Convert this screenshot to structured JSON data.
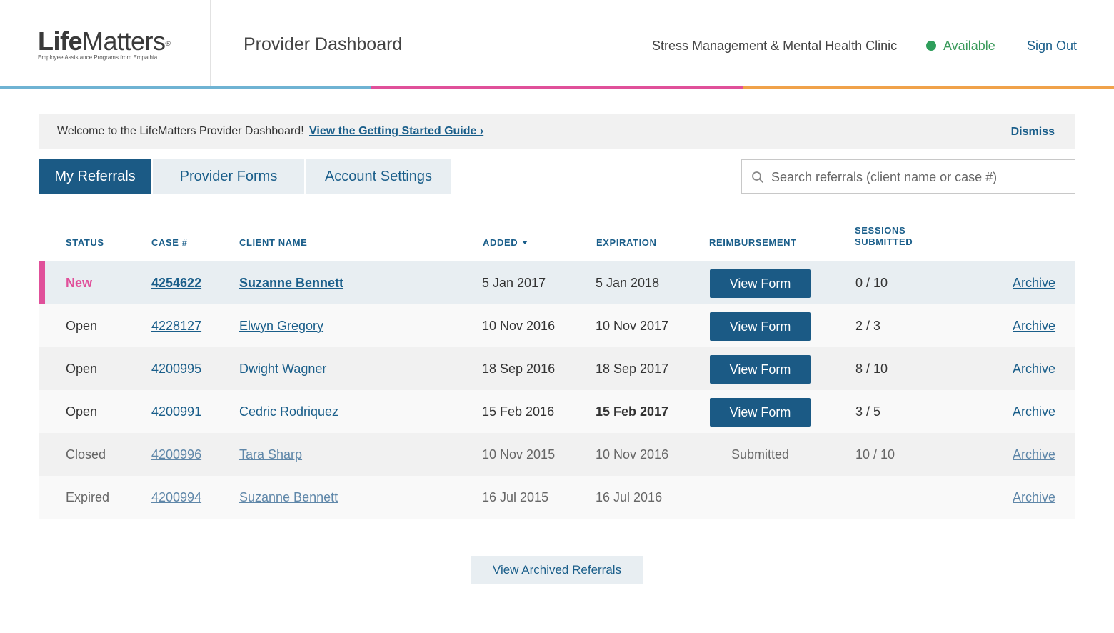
{
  "header": {
    "logo_life": "Life",
    "logo_matters": "Matters",
    "logo_reg": "®",
    "logo_tagline": "Employee Assistance Programs from Empathia",
    "page_title": "Provider Dashboard",
    "clinic_name": "Stress Management & Mental Health Clinic",
    "availability": "Available",
    "sign_out": "Sign Out"
  },
  "colors": {
    "stripe_blue": "#6fb3d3",
    "stripe_pink": "#e0509a",
    "stripe_orange": "#f0a24a",
    "primary": "#1b5a85",
    "available_green": "#2e9e5b",
    "new_status": "#e0509a"
  },
  "banner": {
    "text": "Welcome to the LifeMatters Provider Dashboard!",
    "link": "View the Getting Started Guide ›",
    "dismiss": "Dismiss"
  },
  "tabs": [
    {
      "label": "My Referrals",
      "active": true
    },
    {
      "label": "Provider Forms",
      "active": false
    },
    {
      "label": "Account Settings",
      "active": false
    }
  ],
  "search": {
    "placeholder": "Search referrals (client name or case #)",
    "icon": "search-icon"
  },
  "table": {
    "columns": {
      "status": "STATUS",
      "case": "CASE #",
      "client": "CLIENT NAME",
      "added": "ADDED",
      "expiration": "EXPIRATION",
      "reimbursement": "REIMBURSEMENT",
      "sessions_line1": "SESSIONS",
      "sessions_line2": "SUBMITTED"
    },
    "rows": [
      {
        "status": "New",
        "case": "4254622",
        "client": "Suzanne Bennett",
        "added": "5 Jan 2017",
        "expiration": "5 Jan 2018",
        "reimbursement": "View Form",
        "sessions": "0 / 10",
        "action": "Archive"
      },
      {
        "status": "Open",
        "case": "4228127",
        "client": "Elwyn Gregory",
        "added": "10 Nov 2016",
        "expiration": "10 Nov 2017",
        "reimbursement": "View Form",
        "sessions": "2 / 3",
        "action": "Archive"
      },
      {
        "status": "Open",
        "case": "4200995",
        "client": "Dwight Wagner",
        "added": "18 Sep 2016",
        "expiration": "18 Sep 2017",
        "reimbursement": "View Form",
        "sessions": "8 / 10",
        "action": "Archive"
      },
      {
        "status": "Open",
        "case": "4200991",
        "client": "Cedric Rodriquez",
        "added": "15 Feb 2016",
        "expiration": "15 Feb 2017",
        "reimbursement": "View Form",
        "sessions": "3 / 5",
        "action": "Archive"
      },
      {
        "status": "Closed",
        "case": "4200996",
        "client": "Tara Sharp",
        "added": "10 Nov 2015",
        "expiration": "10 Nov 2016",
        "reimbursement": "Submitted",
        "sessions": "10 / 10",
        "action": "Archive"
      },
      {
        "status": "Expired",
        "case": "4200994",
        "client": "Suzanne Bennett",
        "added": "16 Jul 2015",
        "expiration": "16 Jul 2016",
        "reimbursement": "",
        "sessions": "",
        "action": "Archive"
      }
    ]
  },
  "footer": {
    "archived_button": "View Archived Referrals"
  }
}
